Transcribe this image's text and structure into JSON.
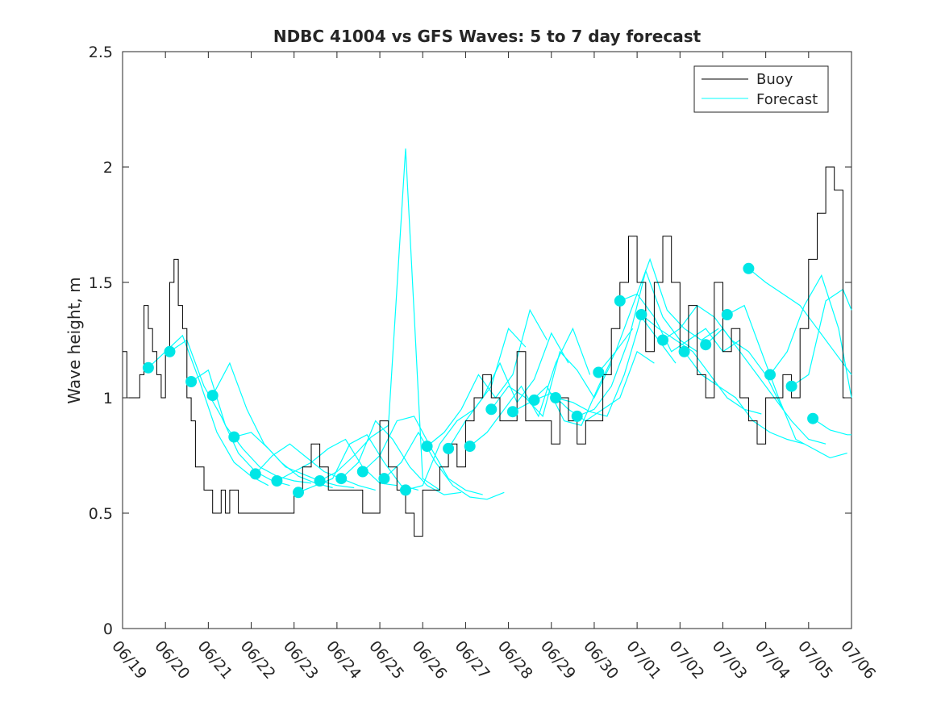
{
  "chart_data": {
    "type": "line",
    "title": "NDBC 41004 vs GFS Waves: 5 to 7 day forecast",
    "ylabel": "Wave height, m",
    "xlabel": "",
    "xlim": [
      "06/19",
      "07/06"
    ],
    "ylim": [
      0,
      2.5
    ],
    "x_ticks": [
      "06/19",
      "06/20",
      "06/21",
      "06/22",
      "06/23",
      "06/24",
      "06/25",
      "06/26",
      "06/27",
      "06/28",
      "06/29",
      "06/30",
      "07/01",
      "07/02",
      "07/03",
      "07/04",
      "07/05",
      "07/06"
    ],
    "y_ticks": [
      "0",
      "0.5",
      "1",
      "1.5",
      "2",
      "2.5"
    ],
    "legend": {
      "placement": "top-right",
      "entries": [
        "Buoy",
        "Forecast"
      ]
    },
    "colors": {
      "buoy": "#000000",
      "forecast": "#00ffff",
      "markers": "#00e6e6"
    },
    "buoy": {
      "name": "Buoy",
      "x": [
        0,
        0.1,
        0.2,
        0.3,
        0.4,
        0.5,
        0.6,
        0.7,
        0.8,
        0.9,
        1.0,
        1.1,
        1.2,
        1.3,
        1.4,
        1.5,
        1.6,
        1.7,
        1.8,
        1.9,
        2.0,
        2.1,
        2.2,
        2.3,
        2.4,
        2.5,
        2.6,
        2.7,
        2.8,
        2.9,
        3.0,
        3.2,
        3.4,
        3.6,
        3.8,
        4.0,
        4.2,
        4.4,
        4.6,
        4.8,
        5.0,
        5.2,
        5.4,
        5.6,
        5.8,
        6.0,
        6.2,
        6.4,
        6.6,
        6.8,
        7.0,
        7.2,
        7.4,
        7.6,
        7.8,
        8.0,
        8.2,
        8.4,
        8.6,
        8.8,
        9.0,
        9.2,
        9.4,
        9.6,
        9.8,
        10.0,
        10.2,
        10.4,
        10.6,
        10.8,
        11.0,
        11.2,
        11.4,
        11.6,
        11.8,
        12.0,
        12.2,
        12.4,
        12.6,
        12.8,
        13.0,
        13.2,
        13.4,
        13.6,
        13.8,
        14.0,
        14.2,
        14.4,
        14.6,
        14.8,
        15.0,
        15.2,
        15.4,
        15.6,
        15.8,
        16.0,
        16.2,
        16.4,
        16.6,
        16.8,
        17.0
      ],
      "values": [
        1.2,
        1.0,
        1.0,
        1.0,
        1.1,
        1.4,
        1.3,
        1.2,
        1.1,
        1.0,
        1.2,
        1.5,
        1.6,
        1.4,
        1.3,
        1.0,
        0.9,
        0.7,
        0.7,
        0.6,
        0.6,
        0.5,
        0.5,
        0.6,
        0.5,
        0.6,
        0.6,
        0.5,
        0.5,
        0.5,
        0.5,
        0.5,
        0.5,
        0.5,
        0.5,
        0.6,
        0.7,
        0.8,
        0.7,
        0.6,
        0.6,
        0.6,
        0.6,
        0.5,
        0.5,
        0.9,
        0.7,
        0.6,
        0.5,
        0.4,
        0.6,
        0.6,
        0.7,
        0.8,
        0.7,
        0.9,
        1.0,
        1.1,
        1.0,
        0.9,
        0.9,
        1.2,
        0.9,
        0.9,
        0.9,
        0.8,
        1.0,
        0.9,
        0.8,
        0.9,
        0.9,
        1.1,
        1.3,
        1.5,
        1.7,
        1.5,
        1.2,
        1.5,
        1.7,
        1.5,
        1.2,
        1.4,
        1.1,
        1.0,
        1.5,
        1.2,
        1.3,
        1.0,
        0.9,
        0.8,
        1.0,
        1.0,
        1.1,
        1.0,
        1.3,
        1.6,
        1.8,
        2.0,
        1.9,
        1.0,
        1.0
      ]
    },
    "forecast_runs": [
      {
        "x": [
          0.6,
          1.0,
          1.4,
          1.8,
          2.2,
          2.6,
          3.0,
          3.4
        ],
        "values": [
          1.13,
          1.2,
          1.27,
          1.07,
          0.85,
          0.72,
          0.66,
          0.62
        ]
      },
      {
        "x": [
          1.1,
          1.5,
          1.9,
          2.3,
          2.7,
          3.1,
          3.5,
          3.9
        ],
        "values": [
          1.2,
          1.25,
          1.05,
          0.92,
          0.76,
          0.68,
          0.64,
          0.62
        ]
      },
      {
        "x": [
          1.6,
          2.0,
          2.4,
          2.8,
          3.2,
          3.6,
          4.0,
          4.4
        ],
        "values": [
          1.07,
          1.12,
          0.88,
          0.78,
          0.7,
          0.66,
          0.64,
          0.63
        ]
      },
      {
        "x": [
          2.1,
          2.5,
          2.9,
          3.3,
          3.7,
          4.1,
          4.5,
          4.9
        ],
        "values": [
          1.01,
          1.15,
          0.95,
          0.8,
          0.72,
          0.66,
          0.63,
          0.61
        ]
      },
      {
        "x": [
          2.6,
          3.0,
          3.4,
          3.8,
          4.2,
          4.6,
          5.0,
          5.4
        ],
        "values": [
          0.83,
          0.85,
          0.78,
          0.7,
          0.67,
          0.64,
          0.62,
          0.61
        ]
      },
      {
        "x": [
          3.1,
          3.5,
          3.9,
          4.3,
          4.7,
          5.1,
          5.5,
          5.9
        ],
        "values": [
          0.67,
          0.75,
          0.8,
          0.74,
          0.68,
          0.65,
          0.62,
          0.6
        ]
      },
      {
        "x": [
          3.6,
          4.0,
          4.4,
          4.8,
          5.2,
          5.6,
          6.0,
          6.4
        ],
        "values": [
          0.64,
          0.68,
          0.72,
          0.78,
          0.82,
          0.7,
          0.63,
          0.62
        ]
      },
      {
        "x": [
          4.1,
          4.5,
          4.9,
          5.3,
          5.7,
          6.1,
          6.5,
          6.9
        ],
        "values": [
          0.59,
          0.62,
          0.65,
          0.8,
          0.84,
          0.72,
          0.62,
          0.6
        ]
      },
      {
        "x": [
          4.6,
          5.0,
          5.4,
          5.8,
          6.2,
          6.6,
          7.0,
          7.4
        ],
        "values": [
          0.64,
          0.68,
          0.75,
          0.83,
          0.88,
          2.08,
          0.65,
          0.6
        ]
      },
      {
        "x": [
          5.1,
          5.5,
          5.9,
          6.3,
          6.7,
          7.1,
          7.5,
          7.9
        ],
        "values": [
          0.65,
          0.72,
          0.9,
          0.82,
          0.7,
          0.62,
          0.58,
          0.59
        ]
      },
      {
        "x": [
          5.6,
          6.0,
          6.4,
          6.8,
          7.2,
          7.6,
          8.0,
          8.4
        ],
        "values": [
          0.68,
          0.75,
          0.9,
          0.92,
          0.78,
          0.65,
          0.6,
          0.58
        ]
      },
      {
        "x": [
          6.1,
          6.5,
          6.9,
          7.3,
          7.7,
          8.1,
          8.5,
          8.9
        ],
        "values": [
          0.65,
          0.72,
          0.85,
          0.72,
          0.62,
          0.57,
          0.56,
          0.59
        ]
      },
      {
        "x": [
          6.6,
          7.0,
          7.4,
          7.8,
          8.2,
          8.6,
          9.0,
          9.4
        ],
        "values": [
          0.6,
          0.62,
          0.8,
          0.9,
          0.95,
          1.05,
          1.3,
          1.22
        ]
      },
      {
        "x": [
          7.1,
          7.5,
          7.9,
          8.3,
          8.7,
          9.1,
          9.5,
          9.9
        ],
        "values": [
          0.79,
          0.85,
          0.95,
          1.1,
          1.0,
          1.1,
          1.38,
          1.25
        ]
      },
      {
        "x": [
          7.6,
          8.0,
          8.4,
          8.8,
          9.2,
          9.6,
          10.0,
          10.4
        ],
        "values": [
          0.78,
          0.9,
          1.0,
          1.15,
          0.98,
          1.08,
          1.28,
          1.15
        ]
      },
      {
        "x": [
          8.1,
          8.5,
          8.9,
          9.3,
          9.7,
          10.1,
          10.5,
          10.9
        ],
        "values": [
          0.79,
          0.85,
          0.95,
          1.05,
          0.92,
          1.15,
          1.3,
          1.1
        ]
      },
      {
        "x": [
          8.6,
          9.0,
          9.4,
          9.8,
          10.2,
          10.6,
          11.0,
          11.4
        ],
        "values": [
          0.95,
          1.05,
          1.0,
          0.92,
          1.2,
          1.12,
          1.0,
          1.15
        ]
      },
      {
        "x": [
          9.1,
          9.5,
          9.9,
          10.3,
          10.7,
          11.1,
          11.5,
          11.9
        ],
        "values": [
          0.94,
          0.98,
          1.05,
          0.9,
          0.88,
          1.05,
          1.2,
          1.3
        ]
      },
      {
        "x": [
          9.6,
          10.0,
          10.4,
          10.8,
          11.2,
          11.6,
          12.0,
          12.4
        ],
        "values": [
          0.99,
          1.02,
          0.95,
          0.9,
          0.95,
          1.0,
          1.2,
          1.15
        ]
      },
      {
        "x": [
          10.1,
          10.5,
          10.9,
          11.3,
          11.7,
          12.1,
          12.5,
          12.9
        ],
        "values": [
          1.0,
          0.98,
          0.94,
          0.92,
          1.1,
          1.35,
          1.25,
          1.15
        ]
      },
      {
        "x": [
          10.6,
          11.0,
          11.4,
          11.8,
          12.2,
          12.6,
          13.0,
          13.4
        ],
        "values": [
          0.92,
          0.95,
          1.05,
          1.25,
          1.55,
          1.35,
          1.25,
          1.2
        ]
      },
      {
        "x": [
          11.1,
          11.5,
          11.9,
          12.3,
          12.7,
          13.1,
          13.5,
          13.9
        ],
        "values": [
          1.11,
          1.2,
          1.4,
          1.6,
          1.38,
          1.3,
          1.25,
          1.3
        ]
      },
      {
        "x": [
          11.6,
          12.0,
          12.4,
          12.8,
          13.2,
          13.6,
          14.0,
          14.4
        ],
        "values": [
          1.42,
          1.45,
          1.35,
          1.2,
          1.25,
          1.3,
          1.2,
          1.25
        ]
      },
      {
        "x": [
          12.1,
          12.5,
          12.9,
          13.3,
          13.7,
          14.1,
          14.5,
          14.9
        ],
        "values": [
          1.36,
          1.3,
          1.25,
          1.2,
          1.1,
          1.0,
          0.95,
          0.93
        ]
      },
      {
        "x": [
          12.6,
          13.0,
          13.4,
          13.8,
          14.2,
          14.6,
          15.0,
          15.4
        ],
        "values": [
          1.25,
          1.3,
          1.4,
          1.35,
          1.25,
          1.2,
          1.1,
          0.95
        ]
      },
      {
        "x": [
          13.1,
          13.5,
          13.9,
          14.3,
          14.7,
          15.1,
          15.5,
          15.9
        ],
        "values": [
          1.2,
          1.1,
          1.05,
          1.0,
          0.9,
          0.85,
          0.82,
          0.8
        ]
      },
      {
        "x": [
          13.6,
          14.0,
          14.4,
          14.8,
          15.2,
          15.6,
          16.0,
          16.4
        ],
        "values": [
          1.23,
          1.3,
          1.2,
          1.1,
          1.0,
          0.9,
          0.82,
          0.8
        ]
      },
      {
        "x": [
          14.1,
          14.5,
          14.9,
          15.3,
          15.7,
          16.1,
          16.5,
          16.9
        ],
        "values": [
          1.36,
          1.4,
          1.2,
          1.0,
          0.82,
          0.78,
          0.74,
          0.76
        ]
      },
      {
        "x": [
          14.6,
          15.0,
          15.4,
          15.8,
          16.2,
          16.6,
          17.0
        ],
        "values": [
          1.56,
          1.5,
          1.45,
          1.4,
          1.3,
          1.2,
          1.1
        ]
      },
      {
        "x": [
          15.1,
          15.5,
          15.9,
          16.3,
          16.7,
          17.0
        ],
        "values": [
          1.1,
          1.2,
          1.4,
          1.53,
          1.3,
          1.0
        ]
      },
      {
        "x": [
          15.6,
          16.0,
          16.4,
          16.8,
          17.0
        ],
        "values": [
          1.05,
          1.1,
          1.42,
          1.47,
          1.38
        ]
      },
      {
        "x": [
          16.1,
          16.5,
          16.9,
          17.0
        ],
        "values": [
          0.91,
          0.86,
          0.84,
          0.84
        ]
      }
    ],
    "forecast_markers": {
      "x": [
        0.6,
        1.1,
        1.6,
        2.1,
        2.6,
        3.1,
        3.6,
        4.1,
        4.6,
        5.1,
        5.6,
        6.1,
        6.6,
        7.1,
        7.6,
        8.1,
        8.6,
        9.1,
        9.6,
        10.1,
        10.6,
        11.1,
        11.6,
        12.1,
        12.6,
        13.1,
        13.6,
        14.1,
        14.6,
        15.1,
        15.6,
        16.1
      ],
      "values": [
        1.13,
        1.2,
        1.07,
        1.01,
        0.83,
        0.67,
        0.64,
        0.59,
        0.64,
        0.65,
        0.68,
        0.65,
        0.6,
        0.79,
        0.78,
        0.79,
        0.95,
        0.94,
        0.99,
        1.0,
        0.92,
        1.11,
        1.42,
        1.36,
        1.25,
        1.2,
        1.23,
        1.36,
        1.56,
        1.1,
        1.05,
        0.91
      ]
    }
  }
}
